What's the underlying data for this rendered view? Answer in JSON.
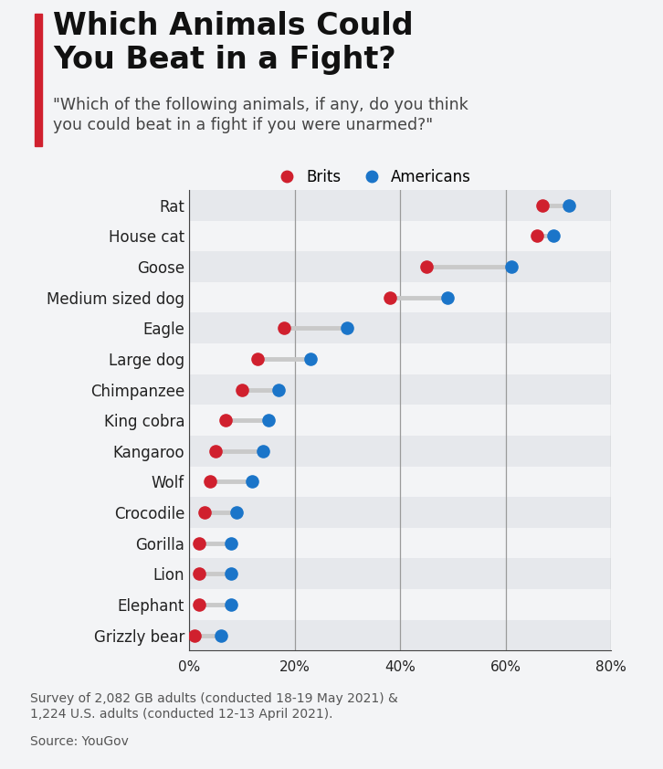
{
  "chart_data": {
    "type": "dumbbell",
    "title": "Which Animals Could\nYou Beat in a Fight?",
    "subtitle": "\"Which of the following animals, if any, do you think\nyou could beat in a fight if you were unarmed?\"",
    "note": "Survey of 2,082 GB adults (conducted 18-19 May 2021) &\n1,224 U.S. adults (conducted 12-13 April 2021).",
    "source": "Source: YouGov",
    "orientation": "horizontal",
    "categories": [
      "Rat",
      "House cat",
      "Goose",
      "Medium sized dog",
      "Eagle",
      "Large dog",
      "Chimpanzee",
      "King cobra",
      "Kangaroo",
      "Wolf",
      "Crocodile",
      "Gorilla",
      "Lion",
      "Elephant",
      "Grizzly bear"
    ],
    "series": [
      {
        "name": "Brits",
        "color": "#d0202e",
        "marker": "o",
        "values": [
          67,
          66,
          45,
          38,
          18,
          13,
          10,
          7,
          5,
          4,
          3,
          2,
          2,
          2,
          1
        ]
      },
      {
        "name": "Americans",
        "color": "#1b75c9",
        "marker": "o",
        "values": [
          72,
          69,
          61,
          49,
          30,
          23,
          17,
          15,
          14,
          12,
          9,
          8,
          8,
          8,
          6
        ]
      }
    ],
    "xlim": [
      0,
      80
    ],
    "xticks": [
      {
        "value": 0,
        "label": "0%"
      },
      {
        "value": 20,
        "label": "20%"
      },
      {
        "value": 40,
        "label": "40%"
      },
      {
        "value": 60,
        "label": "60%"
      },
      {
        "value": 80,
        "label": "80%"
      }
    ],
    "grid": true,
    "legend": "upper center"
  }
}
